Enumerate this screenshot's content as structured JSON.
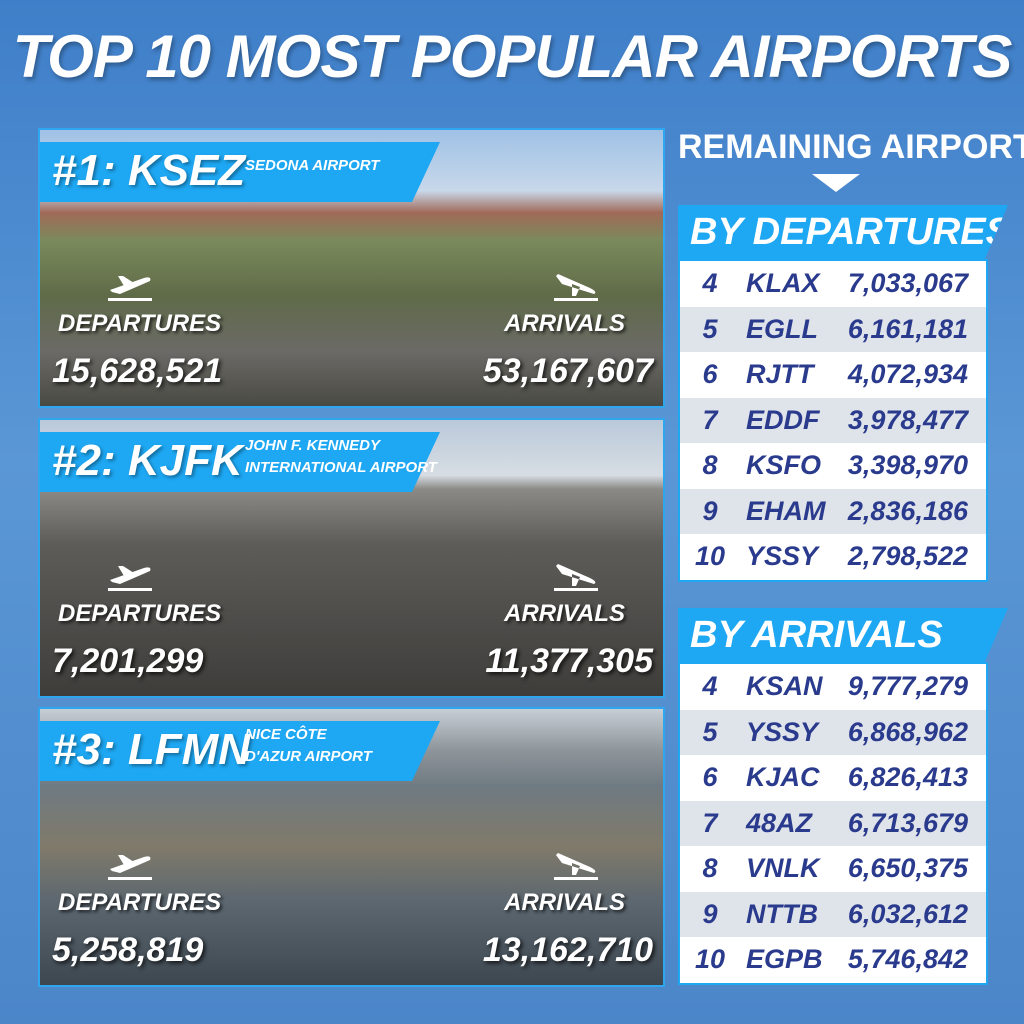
{
  "title": "TOP 10 MOST POPULAR AIRPORTS",
  "top": [
    {
      "rank": "#1: KSEZ",
      "name_lines": [
        "SEDONA AIRPORT"
      ],
      "departures_label": "DEPARTURES",
      "departures": "15,628,521",
      "arrivals_label": "ARRIVALS",
      "arrivals": "53,167,607"
    },
    {
      "rank": "#2: KJFK",
      "name_lines": [
        "JOHN F. KENNEDY",
        "INTERNATIONAL AIRPORT"
      ],
      "departures_label": "DEPARTURES",
      "departures": "7,201,299",
      "arrivals_label": "ARRIVALS",
      "arrivals": "11,377,305"
    },
    {
      "rank": "#3: LFMN",
      "name_lines": [
        "NICE CÔTE",
        "D'AZUR AIRPORT"
      ],
      "departures_label": "DEPARTURES",
      "departures": "5,258,819",
      "arrivals_label": "ARRIVALS",
      "arrivals": "13,162,710"
    }
  ],
  "remaining": {
    "title": "REMAINING AIRPORTS",
    "by_departures": {
      "title": "BY DEPARTURES",
      "rows": [
        [
          "4",
          "KLAX",
          "7,033,067"
        ],
        [
          "5",
          "EGLL",
          "6,161,181"
        ],
        [
          "6",
          "RJTT",
          "4,072,934"
        ],
        [
          "7",
          "EDDF",
          "3,978,477"
        ],
        [
          "8",
          "KSFO",
          "3,398,970"
        ],
        [
          "9",
          "EHAM",
          "2,836,186"
        ],
        [
          "10",
          "YSSY",
          "2,798,522"
        ]
      ]
    },
    "by_arrivals": {
      "title": "BY ARRIVALS",
      "rows": [
        [
          "4",
          "KSAN",
          "9,777,279"
        ],
        [
          "5",
          "YSSY",
          "6,868,962"
        ],
        [
          "6",
          "KJAC",
          "6,826,413"
        ],
        [
          "7",
          "48AZ",
          "6,713,679"
        ],
        [
          "8",
          "VNLK",
          "6,650,375"
        ],
        [
          "9",
          "NTTB",
          "6,032,612"
        ],
        [
          "10",
          "EGPB",
          "5,746,842"
        ]
      ]
    }
  }
}
